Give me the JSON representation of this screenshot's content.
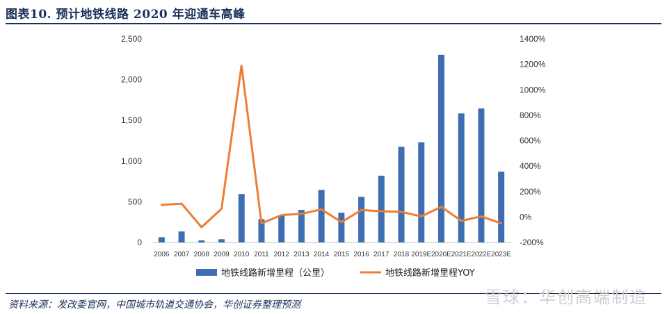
{
  "header": {
    "title": "图表10.  预计地铁线路 2020 年迎通车高峰"
  },
  "footer": {
    "source": "资料来源：发改委官网，中国城市轨道交通协会，华创证券整理预测",
    "watermark": "雪球：华创高端制造"
  },
  "chart_data": {
    "type": "bar",
    "categories": [
      "2006",
      "2007",
      "2008",
      "2009",
      "2010",
      "2011",
      "2012",
      "2013",
      "2014",
      "2015",
      "2016",
      "2017",
      "2018",
      "2019E",
      "2020E",
      "2021E",
      "2022E",
      "2023E"
    ],
    "series": [
      {
        "name": "地铁线路新增里程（公里）",
        "type": "bar",
        "axis": "left",
        "color": "#3f6db3",
        "values": [
          65,
          135,
          25,
          40,
          595,
          285,
          330,
          400,
          645,
          365,
          560,
          820,
          1175,
          1230,
          2305,
          1585,
          1645,
          870
        ]
      },
      {
        "name": "地铁线路新增里程YOY",
        "type": "line",
        "axis": "right",
        "color": "#ed7d31",
        "values": [
          95,
          105,
          -80,
          65,
          1190,
          -50,
          15,
          25,
          60,
          -40,
          55,
          45,
          40,
          5,
          80,
          -30,
          5,
          -50
        ]
      }
    ],
    "yticks_left": [
      "0",
      "500",
      "1,000",
      "1,500",
      "2,000",
      "2,500"
    ],
    "ylim_left": [
      0,
      2500
    ],
    "yticks_right": [
      "-200%",
      "0%",
      "200%",
      "400%",
      "600%",
      "800%",
      "1000%",
      "1200%",
      "1400%"
    ],
    "ylim_right": [
      -200,
      1400
    ],
    "legend_position": "bottom",
    "grid": false
  }
}
